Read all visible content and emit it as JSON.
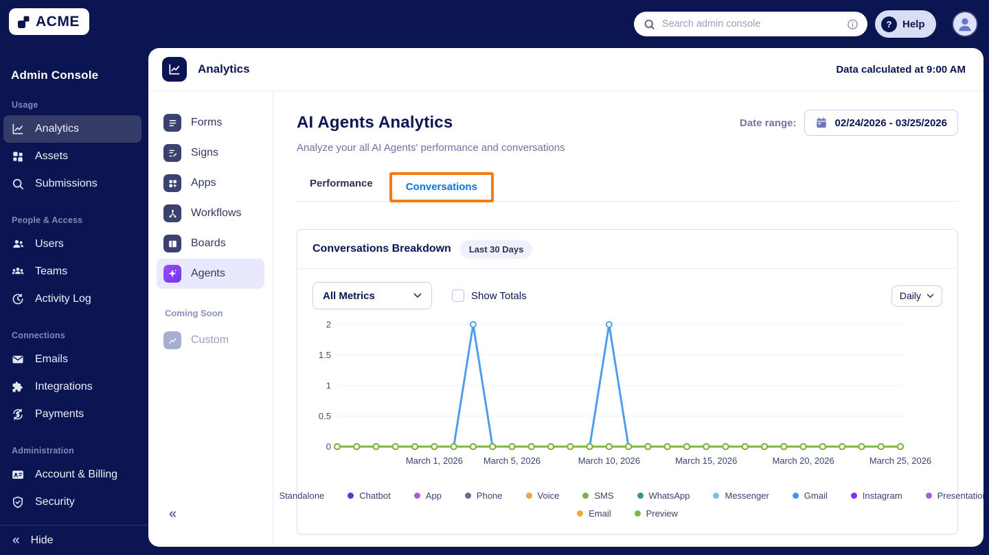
{
  "topbar": {
    "logo_text": "ACME",
    "search_placeholder": "Search admin console",
    "help_label": "Help"
  },
  "sidebar": {
    "title": "Admin Console",
    "sections": [
      {
        "label": "Usage",
        "items": [
          {
            "label": "Analytics",
            "selected": true
          },
          {
            "label": "Assets",
            "selected": false
          },
          {
            "label": "Submissions",
            "selected": false
          }
        ]
      },
      {
        "label": "People & Access",
        "items": [
          {
            "label": "Users",
            "selected": false
          },
          {
            "label": "Teams",
            "selected": false
          },
          {
            "label": "Activity Log",
            "selected": false
          }
        ]
      },
      {
        "label": "Connections",
        "items": [
          {
            "label": "Emails",
            "selected": false
          },
          {
            "label": "Integrations",
            "selected": false
          },
          {
            "label": "Payments",
            "selected": false
          }
        ]
      },
      {
        "label": "Administration",
        "items": [
          {
            "label": "Account & Billing",
            "selected": false
          },
          {
            "label": "Security",
            "selected": false
          }
        ]
      }
    ],
    "hide_label": "Hide"
  },
  "product_nav": {
    "items": [
      {
        "label": "Forms",
        "selected": false
      },
      {
        "label": "Signs",
        "selected": false
      },
      {
        "label": "Apps",
        "selected": false
      },
      {
        "label": "Workflows",
        "selected": false
      },
      {
        "label": "Boards",
        "selected": false
      },
      {
        "label": "Agents",
        "selected": true
      }
    ],
    "coming_soon_label": "Coming Soon",
    "coming_soon_item": "Custom"
  },
  "header": {
    "title": "Analytics",
    "status": "Data calculated at 9:00 AM"
  },
  "main": {
    "title": "AI Agents Analytics",
    "subtitle": "Analyze your all AI Agents' performance and conversations",
    "date_range_label": "Date range:",
    "date_range_value": "02/24/2026 - 03/25/2026",
    "tab_performance": "Performance",
    "tab_conversations": "Conversations"
  },
  "card": {
    "title": "Conversations Breakdown",
    "badge": "Last 30 Days",
    "metrics_filter_value": "All Metrics",
    "show_totals_label": "Show Totals",
    "show_totals_checked": false,
    "interval_value": "Daily"
  },
  "chart_data": {
    "type": "line",
    "title": "Conversations Breakdown",
    "x_start_date": "02/24/2026",
    "x_end_date": "03/25/2026",
    "n_points": 30,
    "x_ticks": [
      {
        "index": 5,
        "label": "March 1, 2026"
      },
      {
        "index": 9,
        "label": "March 5, 2026"
      },
      {
        "index": 14,
        "label": "March 10, 2026"
      },
      {
        "index": 19,
        "label": "March 15, 2026"
      },
      {
        "index": 24,
        "label": "March 20, 2026"
      },
      {
        "index": 29,
        "label": "March 25, 2026"
      }
    ],
    "ylim": [
      0,
      2
    ],
    "y_ticks": [
      {
        "value": 0,
        "label": "0"
      },
      {
        "value": 0.5,
        "label": "0.5"
      },
      {
        "value": 1,
        "label": "1"
      },
      {
        "value": 1.5,
        "label": "1.5"
      },
      {
        "value": 2,
        "label": "2"
      }
    ],
    "grid": "horizontal",
    "legend_position": "bottom",
    "series": [
      {
        "name": "Standalone",
        "color": "#4d9ef0",
        "values": [
          0,
          0,
          0,
          0,
          0,
          0,
          0,
          2,
          0,
          0,
          0,
          0,
          0,
          0,
          2,
          0,
          0,
          0,
          0,
          0,
          0,
          0,
          0,
          0,
          0,
          0,
          0,
          0,
          0,
          0
        ]
      },
      {
        "name": "Chatbot",
        "color": "#6c2bd9",
        "constant_value": 0
      },
      {
        "name": "App",
        "color": "#a85ce0",
        "constant_value": 0
      },
      {
        "name": "Phone",
        "color": "#686f94",
        "constant_value": 0
      },
      {
        "name": "Voice",
        "color": "#eda73b",
        "constant_value": 0
      },
      {
        "name": "SMS",
        "color": "#74b63e",
        "constant_value": 0
      },
      {
        "name": "WhatsApp",
        "color": "#2d9d78",
        "constant_value": 0
      },
      {
        "name": "Messenger",
        "color": "#72c6d8",
        "constant_value": 0
      },
      {
        "name": "Gmail",
        "color": "#3d95f5",
        "constant_value": 0
      },
      {
        "name": "Instagram",
        "color": "#7b2ff2",
        "constant_value": 0
      },
      {
        "name": "Presentation",
        "color": "#a35ce5",
        "constant_value": 0
      },
      {
        "name": "Email",
        "color": "#eda73b",
        "constant_value": 0
      },
      {
        "name": "Preview",
        "color": "#7cb93b",
        "constant_value": 0
      }
    ],
    "legend_rows": [
      [
        0,
        1,
        2,
        3,
        4,
        5,
        6,
        7,
        8,
        9,
        10
      ],
      [
        11,
        12
      ]
    ],
    "spike_annotations": [
      {
        "series": "Standalone",
        "date": "March 3, 2026",
        "value": 2
      },
      {
        "series": "Standalone",
        "date": "March 10, 2026",
        "value": 2
      }
    ]
  },
  "colors": {
    "brand_navy": "#0a1551",
    "active_tab_blue": "#0075e3",
    "annotation_orange": "#f57c12",
    "agents_accent_purple": "#8a3ffc"
  }
}
